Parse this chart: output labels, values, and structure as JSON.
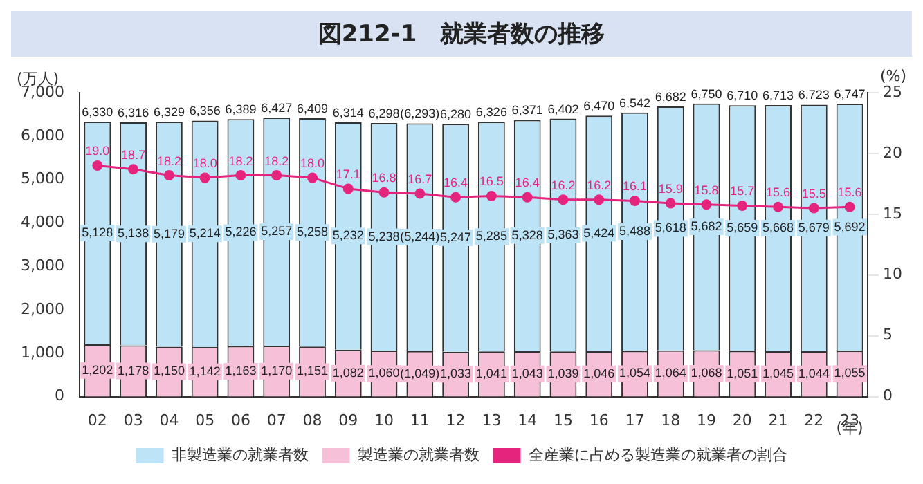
{
  "chart_data": {
    "type": "bar",
    "title": "図212-1　就業者数の推移",
    "ylabel": "(万人)",
    "y2label": "(%)",
    "xlabel": "(年)",
    "categories": [
      "02",
      "03",
      "04",
      "05",
      "06",
      "07",
      "08",
      "09",
      "10",
      "11",
      "12",
      "13",
      "14",
      "15",
      "16",
      "17",
      "18",
      "19",
      "20",
      "21",
      "22",
      "23"
    ],
    "stacked": true,
    "series": [
      {
        "name": "製造業の就業者数",
        "color": "#f6c0d9",
        "values": [
          1202,
          1178,
          1150,
          1142,
          1163,
          1170,
          1151,
          1082,
          1060,
          1049,
          1033,
          1041,
          1043,
          1039,
          1046,
          1054,
          1064,
          1068,
          1051,
          1045,
          1044,
          1055
        ],
        "value_labels": [
          "1,202",
          "1,178",
          "1,150",
          "1,142",
          "1,163",
          "1,170",
          "1,151",
          "1,082",
          "1,060",
          "(1,049)",
          "1,033",
          "1,041",
          "1,043",
          "1,039",
          "1,046",
          "1,054",
          "1,064",
          "1,068",
          "1,051",
          "1,045",
          "1,044",
          "1,055"
        ]
      },
      {
        "name": "非製造業の就業者数",
        "color": "#bde3f6",
        "values": [
          5128,
          5138,
          5179,
          5214,
          5226,
          5257,
          5258,
          5232,
          5238,
          5244,
          5247,
          5285,
          5328,
          5363,
          5424,
          5488,
          5618,
          5682,
          5659,
          5668,
          5679,
          5692
        ],
        "value_labels": [
          "5,128",
          "5,138",
          "5,179",
          "5,214",
          "5,226",
          "5,257",
          "5,258",
          "5,232",
          "5,238",
          "(5,244)",
          "5,247",
          "5,285",
          "5,328",
          "5,363",
          "5,424",
          "5,488",
          "5,618",
          "5,682",
          "5,659",
          "5,668",
          "5,679",
          "5,692"
        ]
      },
      {
        "name": "全産業に占める製造業の就業者の割合",
        "type": "line",
        "axis": "y2",
        "color": "#e5247d",
        "values": [
          19.0,
          18.7,
          18.2,
          18.0,
          18.2,
          18.2,
          18.0,
          17.1,
          16.8,
          16.7,
          16.4,
          16.5,
          16.4,
          16.2,
          16.2,
          16.1,
          15.9,
          15.8,
          15.7,
          15.6,
          15.5,
          15.6
        ],
        "value_labels": [
          "19.0",
          "18.7",
          "18.2",
          "18.0",
          "18.2",
          "18.2",
          "18.0",
          "17.1",
          "16.8",
          "16.7",
          "16.4",
          "16.5",
          "16.4",
          "16.2",
          "16.2",
          "16.1",
          "15.9",
          "15.8",
          "15.7",
          "15.6",
          "15.5",
          "15.6"
        ]
      }
    ],
    "totals": [
      "6,330",
      "6,316",
      "6,329",
      "6,356",
      "6,389",
      "6,427",
      "6,409",
      "6,314",
      "6,298",
      "(6,293)",
      "6,280",
      "6,326",
      "6,371",
      "6,402",
      "6,470",
      "6,542",
      "6,682",
      "6,750",
      "6,710",
      "6,713",
      "6,723",
      "6,747"
    ],
    "ylim": [
      0,
      7000
    ],
    "yticks": [
      {
        "value": 0,
        "label": "0"
      },
      {
        "value": 1000,
        "label": "1,000"
      },
      {
        "value": 2000,
        "label": "2,000"
      },
      {
        "value": 3000,
        "label": "3,000"
      },
      {
        "value": 4000,
        "label": "4,000"
      },
      {
        "value": 5000,
        "label": "5,000"
      },
      {
        "value": 6000,
        "label": "6,000"
      },
      {
        "value": 7000,
        "label": "7,000"
      }
    ],
    "y2lim": [
      0,
      25
    ],
    "y2ticks": [
      0,
      5,
      10,
      15,
      20,
      25
    ],
    "grid": false,
    "legend": "bottom",
    "marker": "circle",
    "line_style": "solid"
  }
}
